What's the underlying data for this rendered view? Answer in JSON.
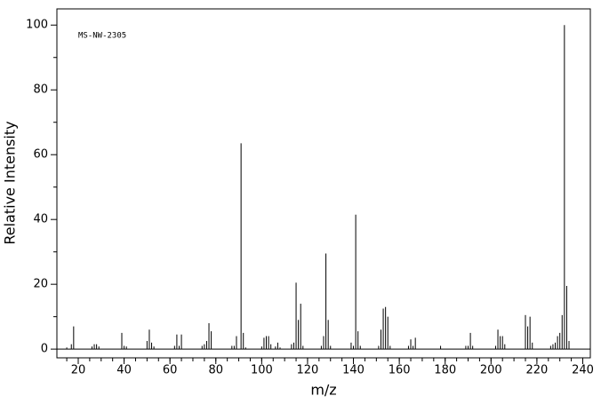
{
  "chart_data": {
    "type": "stem",
    "annotation": "MS-NW-2305",
    "xlabel": "m/z",
    "ylabel": "Relative Intensity",
    "color": "#000000",
    "x": [
      15,
      17,
      18,
      26,
      27,
      28,
      29,
      39,
      40,
      41,
      50,
      51,
      52,
      53,
      62,
      63,
      64,
      65,
      74,
      75,
      76,
      77,
      78,
      87,
      88,
      89,
      91,
      92,
      93,
      100,
      101,
      102,
      103,
      104,
      106,
      107,
      108,
      113,
      114,
      115,
      116,
      117,
      118,
      126,
      127,
      128,
      129,
      130,
      139,
      140,
      141,
      142,
      143,
      151,
      152,
      153,
      154,
      155,
      156,
      164,
      165,
      166,
      167,
      178,
      189,
      190,
      191,
      192,
      202,
      203,
      204,
      205,
      206,
      215,
      216,
      217,
      218,
      226,
      227,
      228,
      229,
      230,
      231,
      232,
      233,
      234
    ],
    "values": [
      0.5,
      1.5,
      7,
      0.8,
      1.5,
      1.5,
      0.8,
      5,
      1,
      0.8,
      2.5,
      6,
      2,
      0.8,
      1,
      4.5,
      1,
      4.5,
      1,
      1.5,
      2.5,
      8,
      5.5,
      1,
      1,
      4,
      63.5,
      5,
      0.5,
      0.8,
      3.5,
      4,
      4,
      1.5,
      0.8,
      2,
      0.5,
      1.5,
      2,
      20.5,
      9,
      14,
      1,
      1,
      4,
      29.5,
      9,
      1,
      2,
      1,
      41.5,
      5.5,
      1,
      1,
      6,
      12.5,
      13,
      10,
      1,
      1,
      3,
      1,
      3.5,
      1,
      1,
      1,
      5,
      1,
      1,
      6,
      4,
      4,
      1.5,
      10.5,
      7,
      10,
      2,
      1,
      1.5,
      2,
      4,
      5,
      10.5,
      100,
      19.5,
      2.5
    ],
    "xlim": [
      10.7,
      243.3
    ],
    "xticks": [
      20,
      40,
      60,
      80,
      100,
      120,
      140,
      160,
      180,
      200,
      220,
      240
    ],
    "ylim": [
      -2.7,
      105
    ],
    "yticks": [
      0,
      20,
      40,
      60,
      80,
      100
    ]
  }
}
